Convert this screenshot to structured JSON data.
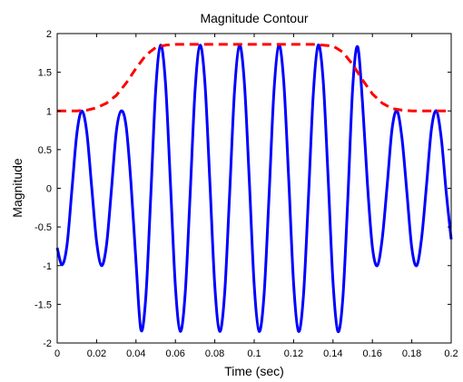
{
  "chart_data": {
    "type": "line",
    "title": "Magnitude Contour",
    "xlabel": "Time (sec)",
    "ylabel": "Magnitude",
    "xlim": [
      0,
      0.2
    ],
    "ylim": [
      -2,
      2
    ],
    "xticks": [
      0,
      0.02,
      0.04,
      0.06,
      0.08,
      0.1,
      0.12,
      0.14,
      0.16,
      0.18,
      0.2
    ],
    "xtick_labels": [
      "0",
      "0.02",
      "0.04",
      "0.06",
      "0.08",
      "0.1",
      "0.12",
      "0.14",
      "0.16",
      "0.18",
      "0.2"
    ],
    "yticks": [
      -2,
      -1.5,
      -1,
      -0.5,
      0,
      0.5,
      1,
      1.5,
      2
    ],
    "ytick_labels": [
      "-2",
      "-1.5",
      "-1",
      "-0.5",
      "0",
      "0.5",
      "1",
      "1.5",
      "2"
    ],
    "grid": false,
    "series": [
      {
        "style": "solid",
        "color": "#0000ff",
        "x": [
          0,
          0.0025,
          0.005,
          0.0075,
          0.01,
          0.0125,
          0.015,
          0.0175,
          0.02,
          0.0225,
          0.025,
          0.0275,
          0.03,
          0.0325,
          0.035,
          0.0375,
          0.04,
          0.0425,
          0.045,
          0.0475,
          0.05,
          0.0525,
          0.055,
          0.0575,
          0.06,
          0.0625,
          0.065,
          0.0675,
          0.07,
          0.0725,
          0.075,
          0.0775,
          0.08,
          0.0825,
          0.085,
          0.0875,
          0.09,
          0.0925,
          0.095,
          0.0975,
          0.1,
          0.1025,
          0.105,
          0.1075,
          0.11,
          0.1125,
          0.115,
          0.1175,
          0.12,
          0.1225,
          0.125,
          0.1275,
          0.13,
          0.1325,
          0.135,
          0.1375,
          0.14,
          0.1425,
          0.145,
          0.1475,
          0.15,
          0.1525,
          0.155,
          0.1575,
          0.16,
          0.1625,
          0.165,
          0.1675,
          0.17,
          0.1725,
          0.175,
          0.1775,
          0.18,
          0.1825,
          0.185,
          0.1875,
          0.19,
          0.1925,
          0.195,
          0.1975,
          0.2
        ],
        "y": [
          -0.77,
          -0.99,
          -0.73,
          -0.01,
          0.71,
          1.0,
          0.73,
          0.02,
          -0.69,
          -1.0,
          -0.74,
          -0.03,
          0.73,
          1.0,
          0.8,
          0.05,
          -0.95,
          -1.83,
          -1.4,
          -0.1,
          1.27,
          1.85,
          1.35,
          0.06,
          -1.27,
          -1.85,
          -1.35,
          -0.07,
          1.27,
          1.85,
          1.36,
          0.08,
          -1.26,
          -1.85,
          -1.36,
          -0.09,
          1.25,
          1.85,
          1.37,
          0.11,
          -1.25,
          -1.85,
          -1.38,
          -0.12,
          1.24,
          1.85,
          1.38,
          0.13,
          -1.23,
          -1.85,
          -1.39,
          -0.14,
          1.22,
          1.85,
          1.4,
          0.15,
          -1.21,
          -1.85,
          -1.42,
          -0.15,
          1.3,
          1.83,
          1.1,
          0.05,
          -0.76,
          -1.0,
          -0.65,
          0.04,
          0.77,
          1.0,
          0.65,
          -0.05,
          -0.77,
          -1.0,
          -0.64,
          0.05,
          0.77,
          1.0,
          0.64,
          -0.06,
          -0.66
        ]
      },
      {
        "style": "dashed",
        "color": "#ff0000",
        "x": [
          0,
          0.01,
          0.015,
          0.02,
          0.025,
          0.03,
          0.035,
          0.04,
          0.045,
          0.05,
          0.055,
          0.06,
          0.07,
          0.08,
          0.09,
          0.1,
          0.11,
          0.12,
          0.13,
          0.14,
          0.145,
          0.15,
          0.155,
          0.16,
          0.165,
          0.17,
          0.175,
          0.18,
          0.19,
          0.2
        ],
        "y": [
          1.0,
          1.0,
          1.01,
          1.04,
          1.1,
          1.2,
          1.36,
          1.55,
          1.72,
          1.82,
          1.85,
          1.86,
          1.86,
          1.86,
          1.86,
          1.86,
          1.86,
          1.86,
          1.86,
          1.84,
          1.76,
          1.6,
          1.4,
          1.22,
          1.1,
          1.03,
          1.01,
          1.0,
          1.0,
          1.0
        ]
      }
    ]
  }
}
